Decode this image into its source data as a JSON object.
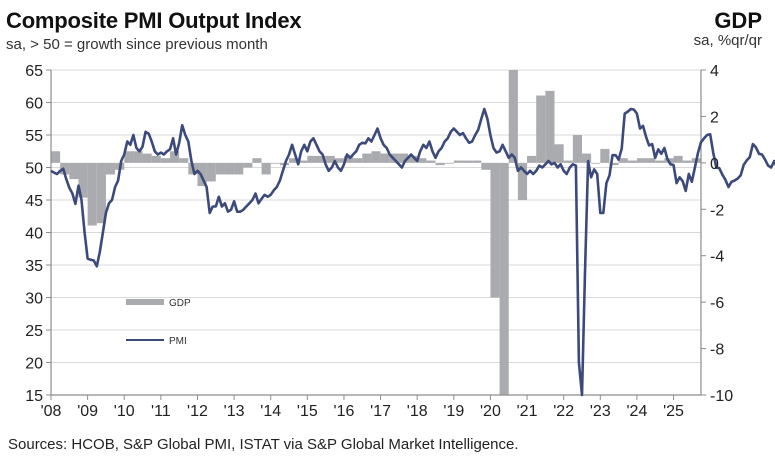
{
  "header": {
    "title": "Composite  PMI Output Index",
    "subtitle": "sa, > 50 = growth since previous  month",
    "right_title": "GDP",
    "right_subtitle": "sa, %qr/qr"
  },
  "footer": {
    "source": "Sources: HCOB, S&P Global PMI, ISTAT via S&P Global Market Intelligence."
  },
  "colors": {
    "pmi_line": "#3b4a7a",
    "gdp_bar": "#a9abae",
    "grid": "#d9d9d9",
    "axis": "#8c8c8c"
  },
  "chart_data": {
    "type": "bar+line",
    "title": "Composite PMI Output Index",
    "subtitle": "sa, > 50 = growth since previous month",
    "xlabel": "",
    "ylabel_left": "",
    "ylabel_right": "GDP sa, %qr/qr",
    "x_tick_labels": [
      "'08",
      "'09",
      "'10",
      "'11",
      "'12",
      "'13",
      "'14",
      "'15",
      "'16",
      "'17",
      "'18",
      "'19",
      "'20",
      "'21",
      "'22",
      "'23",
      "'24",
      "'25"
    ],
    "y_left": {
      "range": [
        15,
        65
      ],
      "ticks": [
        15,
        20,
        25,
        30,
        35,
        40,
        45,
        50,
        55,
        60,
        65
      ]
    },
    "y_right": {
      "range": [
        -10,
        4
      ],
      "ticks": [
        -10,
        -8,
        -6,
        -4,
        -2,
        0,
        2,
        4
      ]
    },
    "grid": true,
    "legend": {
      "position": "left-bottom",
      "entries": [
        {
          "name": "GDP",
          "kind": "bar"
        },
        {
          "name": "PMI",
          "kind": "line"
        }
      ]
    },
    "series": [
      {
        "name": "GDP",
        "type": "bar",
        "axis": "right",
        "unit": "% q/q",
        "x": [
          2008.0,
          2008.25,
          2008.5,
          2008.75,
          2009.0,
          2009.25,
          2009.5,
          2009.75,
          2010.0,
          2010.25,
          2010.5,
          2010.75,
          2011.0,
          2011.25,
          2011.5,
          2011.75,
          2012.0,
          2012.25,
          2012.5,
          2012.75,
          2013.0,
          2013.25,
          2013.5,
          2013.75,
          2014.0,
          2014.25,
          2014.5,
          2014.75,
          2015.0,
          2015.25,
          2015.5,
          2015.75,
          2016.0,
          2016.25,
          2016.5,
          2016.75,
          2017.0,
          2017.25,
          2017.5,
          2017.75,
          2018.0,
          2018.25,
          2018.5,
          2018.75,
          2019.0,
          2019.25,
          2019.5,
          2019.75,
          2020.0,
          2020.25,
          2020.5,
          2020.75,
          2021.0,
          2021.25,
          2021.5,
          2021.75,
          2022.0,
          2022.25,
          2022.5,
          2022.75,
          2023.0,
          2023.25,
          2023.5,
          2023.75,
          2024.0,
          2024.25,
          2024.5,
          2024.75,
          2025.0,
          2025.25,
          2025.5
        ],
        "values": [
          0.5,
          -0.5,
          -0.7,
          -1.5,
          -2.7,
          -2.6,
          -0.5,
          -0.3,
          0.5,
          0.5,
          0.4,
          0.3,
          0.2,
          0.5,
          0.2,
          -0.5,
          -1.0,
          -0.8,
          -0.5,
          -0.5,
          -0.5,
          -0.2,
          0.2,
          -0.5,
          0.0,
          -0.1,
          0.2,
          0.1,
          0.3,
          0.3,
          0.3,
          0.2,
          0.3,
          0.2,
          0.4,
          0.5,
          0.4,
          0.4,
          0.4,
          0.3,
          0.2,
          0.1,
          -0.1,
          0.0,
          0.1,
          0.1,
          0.1,
          -0.3,
          -5.8,
          -12.4,
          15.9,
          -1.6,
          0.3,
          2.9,
          3.1,
          0.8,
          0.1,
          1.2,
          0.4,
          0.0,
          0.6,
          -0.1,
          0.2,
          0.1,
          0.2,
          0.2,
          0.1,
          0.2,
          0.3,
          0.1,
          0.2
        ]
      },
      {
        "name": "PMI",
        "type": "line",
        "axis": "left",
        "x_start": 2008.0,
        "x_step_months": 1,
        "values": [
          49.5,
          49.2,
          49.0,
          49.5,
          49.8,
          48.2,
          46.9,
          46.0,
          44.4,
          47.2,
          45.0,
          40.0,
          36.0,
          35.8,
          35.7,
          34.8,
          37.0,
          40.0,
          43.0,
          44.5,
          45.0,
          47.0,
          48.0,
          51.0,
          52.0,
          54.0,
          53.5,
          55.0,
          53.0,
          52.5,
          53.2,
          55.5,
          55.2,
          54.0,
          52.5,
          52.0,
          52.3,
          52.0,
          52.5,
          52.8,
          54.5,
          52.0,
          53.8,
          56.5,
          55.0,
          54.0,
          51.0,
          49.0,
          49.5,
          49.0,
          48.0,
          47.0,
          43.0,
          44.0,
          44.0,
          45.5,
          44.0,
          44.5,
          43.2,
          43.5,
          44.8,
          43.2,
          43.2,
          43.5,
          44.0,
          44.5,
          45.0,
          46.0,
          44.5,
          45.2,
          45.8,
          45.5,
          45.8,
          46.5,
          47.0,
          48.0,
          49.5,
          51.0,
          52.0,
          53.5,
          52.0,
          50.5,
          52.5,
          53.5,
          52.5,
          54.0,
          54.5,
          53.5,
          52.5,
          52.0,
          50.5,
          49.5,
          50.0,
          51.0,
          50.0,
          49.5,
          50.5,
          52.0,
          51.5,
          52.0,
          52.5,
          53.5,
          53.8,
          53.7,
          54.5,
          54.0,
          55.0,
          56.0,
          54.5,
          53.5,
          53.0,
          52.0,
          51.5,
          51.0,
          50.5,
          50.0,
          51.0,
          51.5,
          52.0,
          51.5,
          51.0,
          52.5,
          53.5,
          53.0,
          54.0,
          52.5,
          51.5,
          52.5,
          53.0,
          54.0,
          54.5,
          55.5,
          56.0,
          55.5,
          55.0,
          55.3,
          54.5,
          53.8,
          54.0,
          55.0,
          55.8,
          57.5,
          59.0,
          57.5,
          55.0,
          53.0,
          52.3,
          52.5,
          53.5,
          52.5,
          51.5,
          52.0,
          51.5,
          49.5,
          50.0,
          49.5,
          49.0,
          49.5,
          49.0,
          49.5,
          50.3,
          50.0,
          50.5,
          51.0,
          50.5,
          50.7,
          50.0,
          50.5,
          49.5,
          49.0,
          50.0,
          50.5,
          50.3,
          20.0,
          10.9,
          33.9,
          51.0,
          48.5,
          49.7,
          49.0,
          43.0,
          43.0,
          47.6,
          48.8,
          51.9,
          51.9,
          51.2,
          52.9,
          58.3,
          58.6,
          59.0,
          58.9,
          58.3,
          56.0,
          56.4,
          54.7,
          53.4,
          53.6,
          51.5,
          52.8,
          52.1,
          53.0,
          51.3,
          50.5,
          50.4,
          47.6,
          48.5,
          47.9,
          46.4,
          49.0,
          47.8,
          50.0,
          52.2,
          53.9,
          54.5,
          55.0,
          55.1,
          52.3,
          50.0,
          49.9,
          48.9,
          48.1,
          47.0,
          47.8,
          48.0,
          48.3,
          48.8,
          50.4,
          51.1,
          51.6,
          53.6,
          53.1,
          52.1,
          52.0,
          51.2,
          50.3,
          50.0,
          51.0,
          49.9,
          49.6,
          47.7,
          50.0,
          50.5,
          50.3,
          51.9,
          51.1,
          51.0,
          51.8,
          52.4,
          51.5,
          51.7,
          51.8
        ]
      }
    ]
  }
}
